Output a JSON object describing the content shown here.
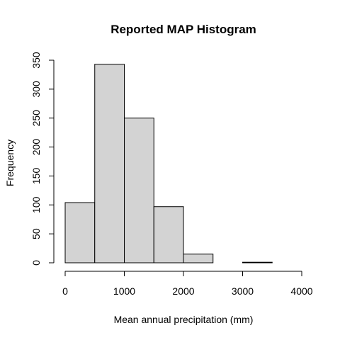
{
  "chart_data": {
    "type": "bar",
    "title": "Reported MAP Histogram",
    "xlabel": "Mean annual precipitation (mm)",
    "ylabel": "Frequency",
    "bins": [
      {
        "from": 0,
        "to": 500,
        "count": 104
      },
      {
        "from": 500,
        "to": 1000,
        "count": 343
      },
      {
        "from": 1000,
        "to": 1500,
        "count": 250
      },
      {
        "from": 1500,
        "to": 2000,
        "count": 97
      },
      {
        "from": 2000,
        "to": 2500,
        "count": 15
      },
      {
        "from": 2500,
        "to": 3000,
        "count": 0
      },
      {
        "from": 3000,
        "to": 3500,
        "count": 1
      },
      {
        "from": 3500,
        "to": 4000,
        "count": 0
      }
    ],
    "xlim": [
      0,
      4000
    ],
    "ylim": [
      0,
      350
    ],
    "x_ticks": [
      0,
      1000,
      2000,
      3000,
      4000
    ],
    "x_tick_labels": [
      "0",
      "1000",
      "2000",
      "3000",
      "4000"
    ],
    "y_ticks": [
      0,
      50,
      100,
      150,
      200,
      250,
      300,
      350
    ],
    "y_tick_labels": [
      "0",
      "50",
      "100",
      "150",
      "200",
      "250",
      "300",
      "350"
    ],
    "bar_fill": "#d3d3d3",
    "bar_stroke": "#000000",
    "grid": false,
    "legend": "none"
  }
}
